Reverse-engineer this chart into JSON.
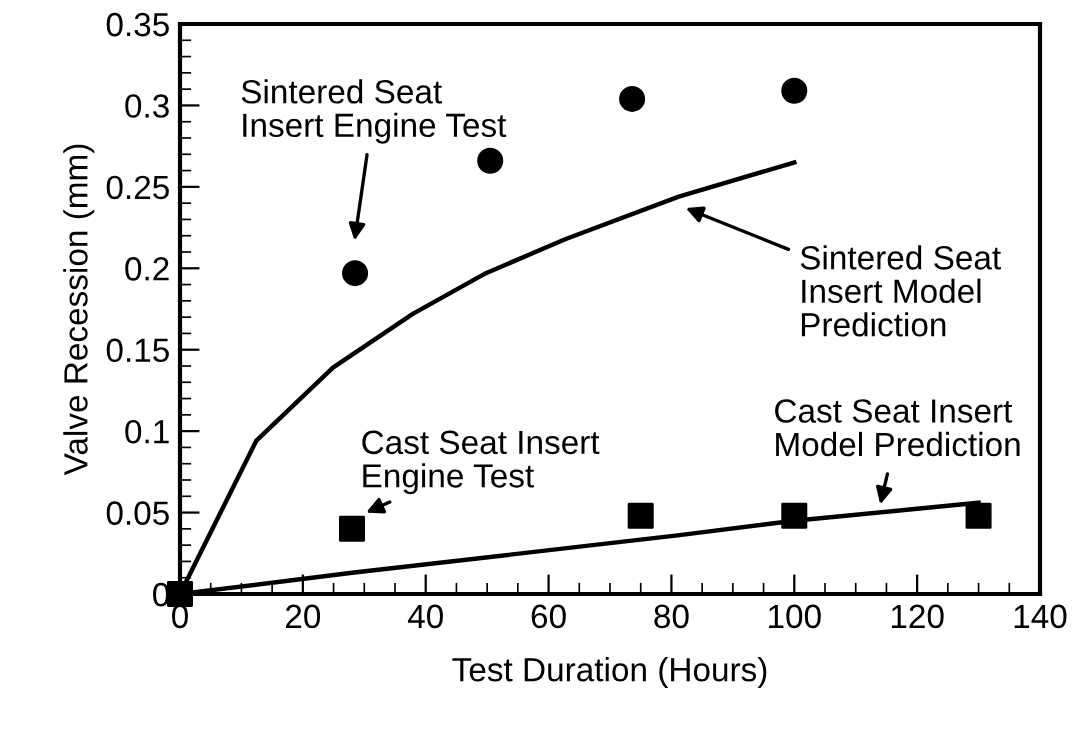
{
  "chart_data": {
    "type": "scatter",
    "xlabel": "Test Duration (Hours)",
    "ylabel": "Valve Recession (mm)",
    "xlim": [
      0,
      140
    ],
    "xticks": [
      0,
      20,
      40,
      60,
      80,
      100,
      120,
      140
    ],
    "ylim": [
      0,
      0.35
    ],
    "yticks": [
      0,
      0.05,
      0.1,
      0.15,
      0.2,
      0.25,
      0.3,
      0.35
    ],
    "grid": false,
    "legend": false,
    "series": [
      {
        "marker": "circle",
        "color": "#000000",
        "x": [
          28.5,
          50.5,
          73.6,
          100
        ],
        "values": [
          0.197,
          0.266,
          0.304,
          0.309
        ]
      },
      {
        "marker": "square",
        "color": "#000000",
        "x": [
          0,
          28,
          75,
          100,
          130
        ],
        "values": [
          0,
          0.04,
          0.048,
          0.048,
          0.048
        ]
      },
      {
        "type": "line",
        "marker": "none",
        "line_style": "solid",
        "color": "#000000",
        "x": [
          0,
          12.4,
          24.9,
          37.9,
          49.8,
          62.8,
          81.2,
          100
        ],
        "values": [
          0,
          0.094,
          0.139,
          0.172,
          0.197,
          0.218,
          0.244,
          0.265
        ]
      },
      {
        "type": "line",
        "marker": "none",
        "line_style": "solid",
        "color": "#000000",
        "x": [
          0,
          28,
          81,
          100,
          130
        ],
        "values": [
          0,
          0.013,
          0.036,
          0.045,
          0.056
        ]
      }
    ],
    "annotations": [
      "Sintered Seat\nInsert Engine Test",
      "Sintered Seat\nInsert Model\nPrediction",
      {
        "text": "Cast Seat Insert\nEngine Test",
        "x": 30.3,
        "y": 0.05
      },
      {
        "text": "Cast Seat Insert\nModel Prediction",
        "x": 114,
        "y": 0.055
      }
    ]
  }
}
